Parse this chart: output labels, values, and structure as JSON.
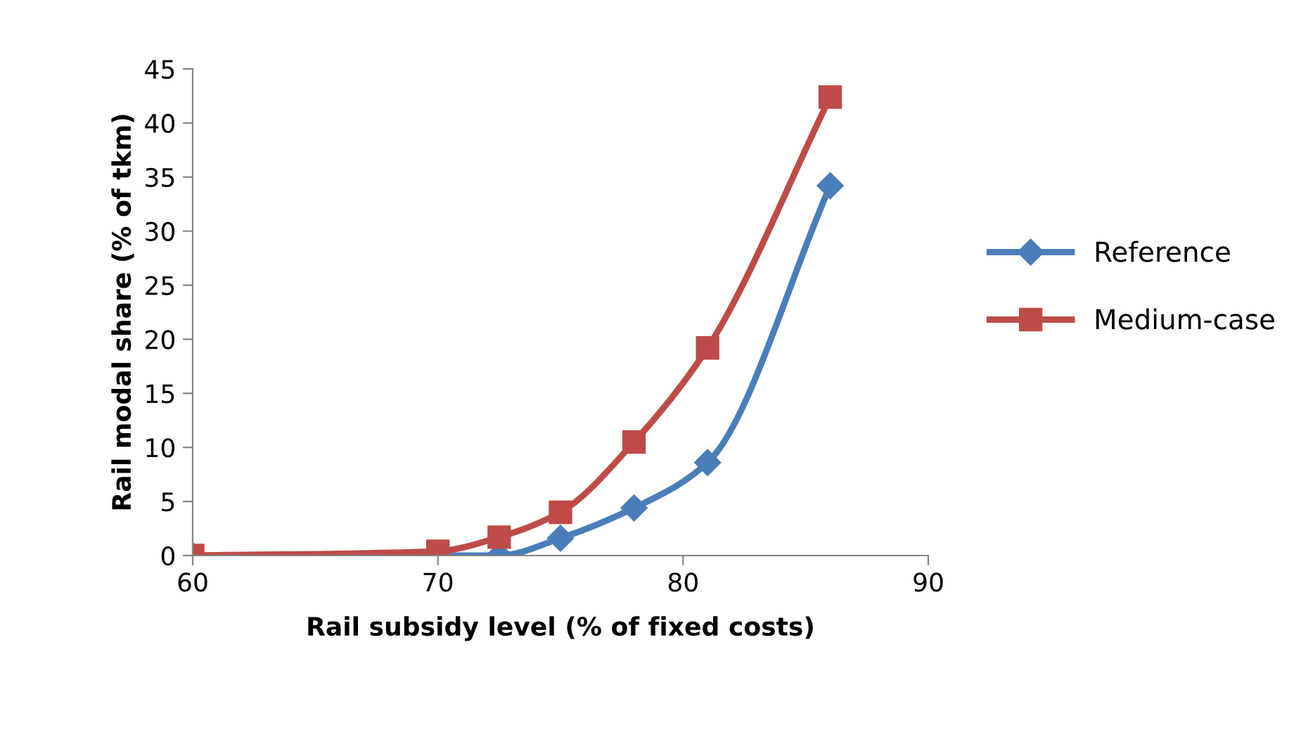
{
  "chart_data": {
    "type": "line",
    "xlabel": "Rail subsidy level (% of fixed costs)",
    "ylabel": "Rail modal share (% of tkm)",
    "xlim": [
      60,
      90
    ],
    "xticks": [
      60,
      70,
      80,
      90
    ],
    "ylim": [
      0,
      45
    ],
    "yticks": [
      0,
      5,
      10,
      15,
      20,
      25,
      30,
      35,
      40,
      45
    ],
    "grid": false,
    "legend": "right",
    "series": [
      {
        "name": "Reference",
        "color": "#4a7ebb",
        "marker": "diamond",
        "x": [
          60,
          70,
          72.5,
          75,
          78,
          81,
          86
        ],
        "values": [
          0,
          0,
          0,
          1.6,
          4.4,
          8.6,
          34.2
        ]
      },
      {
        "name": "Medium-case",
        "color": "#be4b48",
        "marker": "square",
        "x": [
          60,
          70,
          72.5,
          75,
          78,
          81,
          86
        ],
        "values": [
          0,
          0.4,
          1.7,
          4.0,
          10.5,
          19.2,
          42.4
        ]
      }
    ]
  }
}
